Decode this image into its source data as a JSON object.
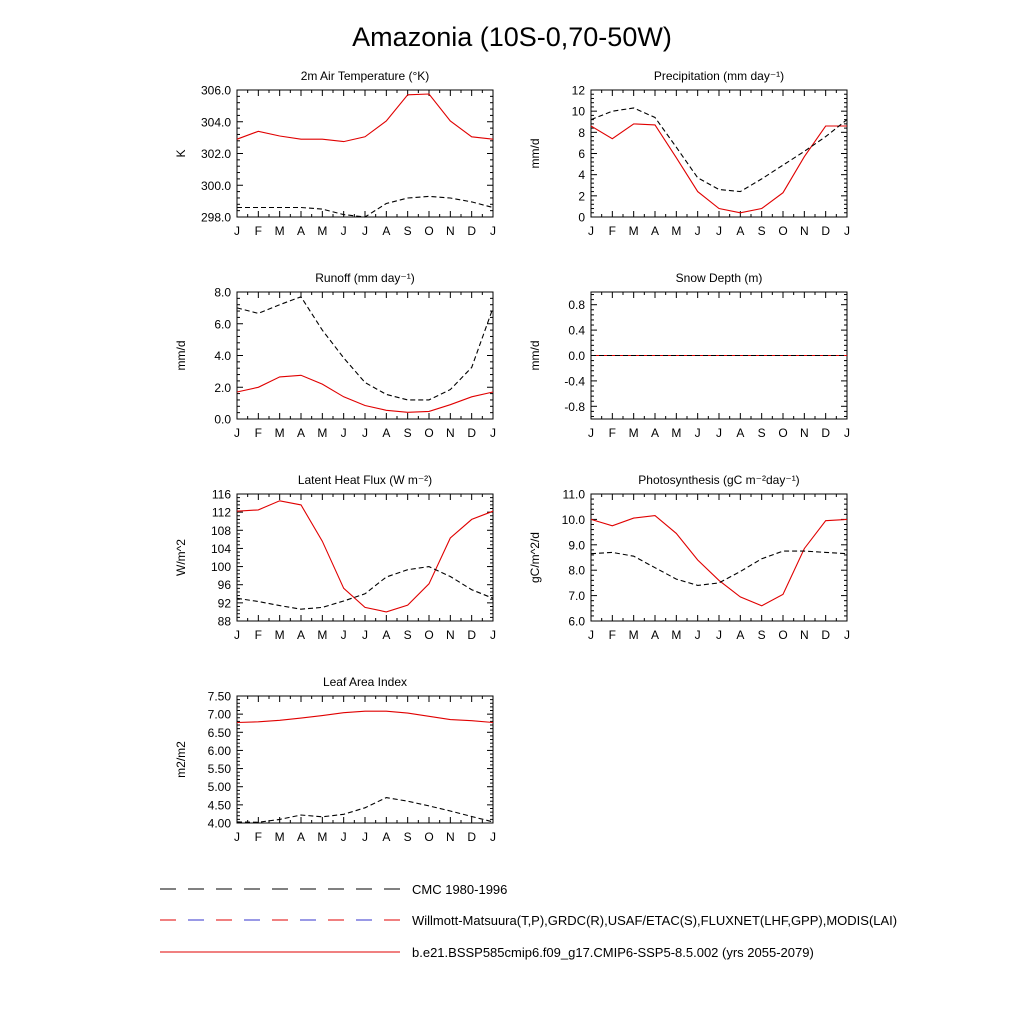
{
  "title": "Amazonia (10S-0,70-50W)",
  "months": [
    "J",
    "F",
    "M",
    "A",
    "M",
    "J",
    "J",
    "A",
    "S",
    "O",
    "N",
    "D",
    "J"
  ],
  "colors": {
    "model": "#e00000",
    "obs": "#000000",
    "blue_dash": "#3333cc",
    "axis": "#000000"
  },
  "legend": {
    "entries": [
      {
        "label": "CMC 1980-1996",
        "style": "dashed",
        "color": "#000000"
      },
      {
        "label": "Willmott-Matsuura(T,P),GRDC(R),USAF/ETAC(S),FLUXNET(LHF,GPP),MODIS(LAI)",
        "style": "dashed-red-blue",
        "color": "#e00000"
      },
      {
        "label": "b.e21.BSSP585cmip6.f09_g17.CMIP6-SSP5-8.5.002 (yrs 2055-2079)",
        "style": "solid",
        "color": "#e00000"
      }
    ]
  },
  "chart_data": [
    {
      "type": "line",
      "title": "2m Air Temperature (°K)",
      "ylabel": "K",
      "ylim": [
        298.0,
        306.0
      ],
      "yticks": [
        "298.0",
        "300.0",
        "302.0",
        "304.0",
        "306.0"
      ],
      "ytick_values": [
        298,
        300,
        302,
        304,
        306
      ],
      "x": [
        "J",
        "F",
        "M",
        "A",
        "M",
        "J",
        "J",
        "A",
        "S",
        "O",
        "N",
        "D",
        "J"
      ],
      "series": [
        {
          "role": "model",
          "values": [
            302.9,
            303.4,
            303.1,
            302.9,
            302.9,
            302.75,
            303.05,
            304.05,
            305.7,
            305.75,
            304.05,
            303.05,
            302.9
          ]
        },
        {
          "role": "obs",
          "values": [
            298.6,
            298.6,
            298.6,
            298.6,
            298.5,
            298.15,
            298.0,
            298.85,
            299.2,
            299.3,
            299.2,
            298.95,
            298.6
          ]
        }
      ]
    },
    {
      "type": "line",
      "title": "Precipitation (mm day⁻¹)",
      "ylabel": "mm/d",
      "ylim": [
        0,
        12
      ],
      "yticks": [
        "0",
        "2",
        "4",
        "6",
        "8",
        "10",
        "12"
      ],
      "ytick_values": [
        0,
        2,
        4,
        6,
        8,
        10,
        12
      ],
      "x": [
        "J",
        "F",
        "M",
        "A",
        "M",
        "J",
        "J",
        "A",
        "S",
        "O",
        "N",
        "D",
        "J"
      ],
      "series": [
        {
          "role": "model",
          "values": [
            8.6,
            7.4,
            8.8,
            8.7,
            5.6,
            2.4,
            0.8,
            0.4,
            0.8,
            2.3,
            5.7,
            8.6,
            8.6
          ]
        },
        {
          "role": "obs",
          "values": [
            9.2,
            10.0,
            10.3,
            9.4,
            6.6,
            3.7,
            2.6,
            2.4,
            3.6,
            4.9,
            6.2,
            7.6,
            9.2
          ]
        }
      ]
    },
    {
      "type": "line",
      "title": "Runoff (mm day⁻¹)",
      "ylabel": "mm/d",
      "ylim": [
        0,
        8
      ],
      "yticks": [
        "0.0",
        "2.0",
        "4.0",
        "6.0",
        "8.0"
      ],
      "ytick_values": [
        0,
        2,
        4,
        6,
        8
      ],
      "x": [
        "J",
        "F",
        "M",
        "A",
        "M",
        "J",
        "J",
        "A",
        "S",
        "O",
        "N",
        "D",
        "J"
      ],
      "series": [
        {
          "role": "model",
          "values": [
            1.7,
            2.0,
            2.65,
            2.75,
            2.2,
            1.4,
            0.85,
            0.55,
            0.42,
            0.48,
            0.9,
            1.4,
            1.7
          ]
        },
        {
          "role": "obs",
          "values": [
            7.0,
            6.65,
            7.2,
            7.7,
            5.6,
            3.85,
            2.3,
            1.55,
            1.2,
            1.2,
            1.85,
            3.25,
            7.0
          ]
        }
      ]
    },
    {
      "type": "line",
      "title": "Snow Depth (m)",
      "ylabel": "mm/d",
      "ylim": [
        -1.0,
        1.0
      ],
      "yticks": [
        "-0.8",
        "-0.4",
        "0.0",
        "0.4",
        "0.8"
      ],
      "ytick_values": [
        -0.8,
        -0.4,
        0,
        0.4,
        0.8
      ],
      "x": [
        "J",
        "F",
        "M",
        "A",
        "M",
        "J",
        "J",
        "A",
        "S",
        "O",
        "N",
        "D",
        "J"
      ],
      "series": [
        {
          "role": "model",
          "values": [
            0,
            0,
            0,
            0,
            0,
            0,
            0,
            0,
            0,
            0,
            0,
            0,
            0
          ]
        },
        {
          "role": "obs",
          "values": [
            0,
            0,
            0,
            0,
            0,
            0,
            0,
            0,
            0,
            0,
            0,
            0,
            0
          ]
        }
      ]
    },
    {
      "type": "line",
      "title": "Latent Heat Flux (W m⁻²)",
      "ylabel": "W/m^2",
      "ylim": [
        88,
        116
      ],
      "yticks": [
        "88",
        "92",
        "96",
        "100",
        "104",
        "108",
        "112",
        "116"
      ],
      "ytick_values": [
        88,
        92,
        96,
        100,
        104,
        108,
        112,
        116
      ],
      "x": [
        "J",
        "F",
        "M",
        "A",
        "M",
        "J",
        "J",
        "A",
        "S",
        "O",
        "N",
        "D",
        "J"
      ],
      "series": [
        {
          "role": "model",
          "values": [
            112.2,
            112.5,
            114.5,
            113.6,
            105.6,
            95.2,
            91.0,
            90.0,
            91.5,
            96.2,
            106.3,
            110.4,
            112.2
          ]
        },
        {
          "role": "obs",
          "values": [
            93.0,
            92.3,
            91.4,
            90.6,
            91.0,
            92.4,
            94.0,
            97.7,
            99.3,
            100.0,
            97.8,
            94.9,
            93.0
          ]
        }
      ]
    },
    {
      "type": "line",
      "title": "Photosynthesis (gC m⁻²day⁻¹)",
      "ylabel": "gC/m^2/d",
      "ylim": [
        6.0,
        11.0
      ],
      "yticks": [
        "6.0",
        "7.0",
        "8.0",
        "9.0",
        "10.0",
        "11.0"
      ],
      "ytick_values": [
        6,
        7,
        8,
        9,
        10,
        11
      ],
      "x": [
        "J",
        "F",
        "M",
        "A",
        "M",
        "J",
        "J",
        "A",
        "S",
        "O",
        "N",
        "D",
        "J"
      ],
      "series": [
        {
          "role": "model",
          "values": [
            10.0,
            9.75,
            10.05,
            10.15,
            9.45,
            8.4,
            7.6,
            6.95,
            6.6,
            7.05,
            8.85,
            9.95,
            10.0
          ]
        },
        {
          "role": "obs",
          "values": [
            8.65,
            8.7,
            8.55,
            8.1,
            7.65,
            7.4,
            7.5,
            7.95,
            8.45,
            8.75,
            8.75,
            8.7,
            8.65
          ]
        }
      ]
    },
    {
      "type": "line",
      "title": "Leaf Area Index",
      "ylabel": "m2/m2",
      "ylim": [
        4.0,
        7.5
      ],
      "yticks": [
        "4.00",
        "4.50",
        "5.00",
        "5.50",
        "6.00",
        "6.50",
        "7.00",
        "7.50"
      ],
      "ytick_values": [
        4.0,
        4.5,
        5.0,
        5.5,
        6.0,
        6.5,
        7.0,
        7.5
      ],
      "x": [
        "J",
        "F",
        "M",
        "A",
        "M",
        "J",
        "J",
        "A",
        "S",
        "O",
        "N",
        "D",
        "J"
      ],
      "series": [
        {
          "role": "model",
          "values": [
            6.77,
            6.79,
            6.83,
            6.89,
            6.96,
            7.04,
            7.08,
            7.08,
            7.03,
            6.94,
            6.85,
            6.82,
            6.77
          ]
        },
        {
          "role": "obs",
          "values": [
            4.03,
            4.02,
            4.1,
            4.22,
            4.17,
            4.24,
            4.42,
            4.7,
            4.6,
            4.47,
            4.33,
            4.18,
            4.03
          ]
        }
      ]
    }
  ]
}
